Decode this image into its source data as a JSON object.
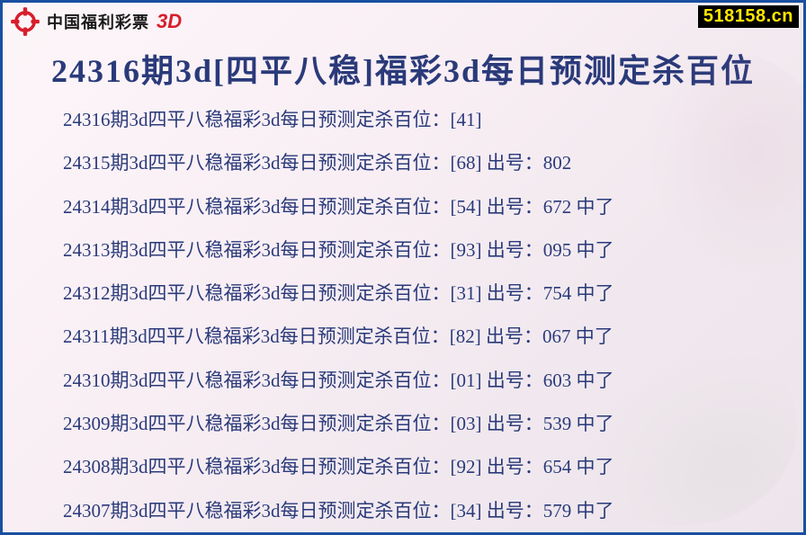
{
  "header": {
    "brand_text": "中国福利彩票",
    "brand_3d": "3D",
    "watermark": "518158.cn"
  },
  "title": "24316期3d[四平八稳]福彩3d每日预测定杀百位",
  "list_prefix": "期3d四平八稳福彩3d每日预测定杀百位：",
  "rows": [
    {
      "period": "24316",
      "bracket": "[41]",
      "draw": "",
      "hit": ""
    },
    {
      "period": "24315",
      "bracket": "[68]",
      "draw": "802",
      "hit": ""
    },
    {
      "period": "24314",
      "bracket": "[54]",
      "draw": "672",
      "hit": "中了"
    },
    {
      "period": "24313",
      "bracket": "[93]",
      "draw": "095",
      "hit": "中了"
    },
    {
      "period": "24312",
      "bracket": "[31]",
      "draw": "754",
      "hit": "中了"
    },
    {
      "period": "24311",
      "bracket": "[82]",
      "draw": "067",
      "hit": "中了"
    },
    {
      "period": "24310",
      "bracket": "[01]",
      "draw": "603",
      "hit": "中了"
    },
    {
      "period": "24309",
      "bracket": "[03]",
      "draw": "539",
      "hit": "中了"
    },
    {
      "period": "24308",
      "bracket": "[92]",
      "draw": "654",
      "hit": "中了"
    },
    {
      "period": "24307",
      "bracket": "[34]",
      "draw": "579",
      "hit": "中了"
    }
  ],
  "style": {
    "border_color": "#1a4fa0",
    "text_color": "#2a3a7a",
    "title_fontsize": 36,
    "row_fontsize": 21,
    "row_gap": 21,
    "logo_red": "#d81e2c",
    "watermark_bg": "#000000",
    "watermark_fg": "#ffe600",
    "bg_gradient": [
      "#fdf6f9",
      "#f8eef4",
      "#f0e8ee",
      "#ede5eb"
    ]
  }
}
